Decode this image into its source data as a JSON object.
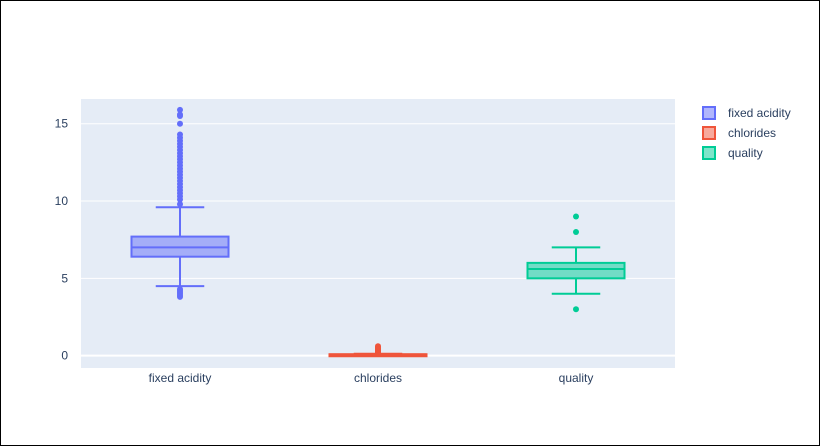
{
  "chart_data": {
    "type": "box",
    "categories": [
      "fixed acidity",
      "chlorides",
      "quality"
    ],
    "ylim": [
      -0.8,
      16.6
    ],
    "yticks": [
      0,
      5,
      10,
      15
    ],
    "grid": true,
    "legend_position": "top-right",
    "series": [
      {
        "name": "fixed acidity",
        "color": "#636efa",
        "lower_fence": 4.5,
        "q1": 6.4,
        "median": 7.0,
        "q3": 7.7,
        "upper_fence": 9.6,
        "outliers": [
          3.8,
          3.9,
          4.0,
          4.1,
          4.2,
          4.3,
          9.8,
          10.1,
          10.3,
          10.5,
          10.7,
          10.9,
          11.1,
          11.3,
          11.5,
          11.7,
          11.9,
          12.1,
          12.3,
          12.5,
          12.7,
          12.9,
          13.1,
          13.3,
          13.5,
          13.7,
          13.9,
          14.1,
          14.3,
          15.0,
          15.5,
          15.6,
          15.9
        ]
      },
      {
        "name": "chlorides",
        "color": "#ef553b",
        "lower_fence": 0.012,
        "q1": 0.07,
        "median": 0.079,
        "q3": 0.09,
        "upper_fence": 0.12,
        "outliers": [
          0.15,
          0.2,
          0.25,
          0.3,
          0.35,
          0.4,
          0.45,
          0.5,
          0.55,
          0.61
        ]
      },
      {
        "name": "quality",
        "color": "#00cc96",
        "lower_fence": 4,
        "q1": 5,
        "median": 5.6,
        "q3": 6,
        "upper_fence": 7,
        "outliers": [
          3,
          8,
          9
        ]
      }
    ]
  }
}
